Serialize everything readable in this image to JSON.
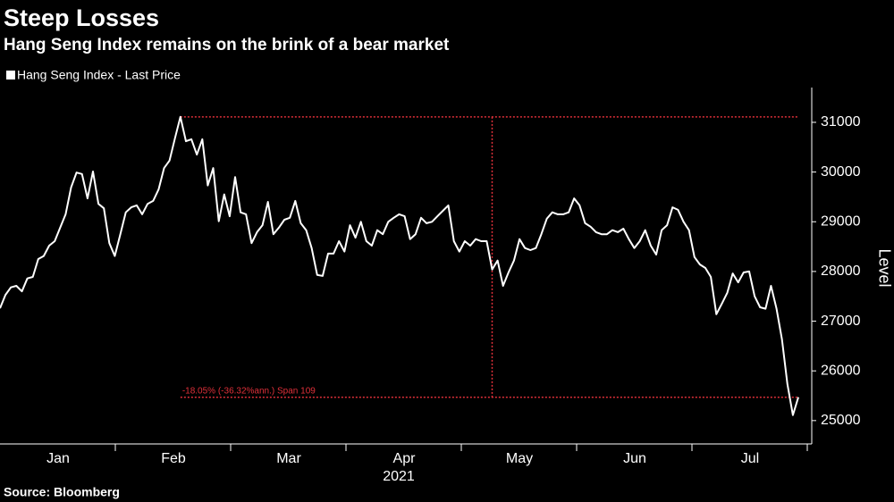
{
  "chart_data": {
    "type": "line",
    "title": "Steep Losses",
    "subtitle": "Hang Seng Index remains on the brink of a bear market",
    "source": "Source: Bloomberg",
    "y_label": "Level",
    "x_year": "2021",
    "month_labels": [
      "Jan",
      "Feb",
      "Mar",
      "Apr",
      "May",
      "Jun",
      "Jul"
    ],
    "annotation": "-18.05% (-36.32%ann.) Span 109",
    "annotation_color": "#e0303a",
    "ylim": [
      24530,
      31700
    ],
    "yticks": [
      25000,
      26000,
      27000,
      28000,
      29000,
      30000,
      31000
    ],
    "grid": false,
    "series": [
      {
        "name": "Hang Seng Index - Last Price",
        "color": "#ffffff",
        "values": [
          27260,
          27530,
          27680,
          27710,
          27600,
          27860,
          27890,
          28250,
          28310,
          28520,
          28610,
          28880,
          29150,
          29690,
          29990,
          29960,
          29470,
          30010,
          29360,
          29270,
          28570,
          28310,
          28750,
          29190,
          29290,
          29330,
          29150,
          29360,
          29420,
          29650,
          30080,
          30230,
          30680,
          31110,
          30620,
          30660,
          30350,
          30660,
          29730,
          30080,
          29010,
          29550,
          29110,
          29900,
          29190,
          29150,
          28570,
          28790,
          28930,
          29400,
          28750,
          28880,
          29040,
          29080,
          29420,
          28970,
          28830,
          28470,
          27930,
          27910,
          28360,
          28360,
          28610,
          28400,
          28930,
          28680,
          29000,
          28610,
          28520,
          28830,
          28750,
          29000,
          29080,
          29150,
          29110,
          28650,
          28750,
          29080,
          28970,
          29000,
          29110,
          29220,
          29330,
          28610,
          28400,
          28610,
          28520,
          28650,
          28610,
          28610,
          28040,
          28220,
          27710,
          27980,
          28220,
          28650,
          28470,
          28430,
          28470,
          28750,
          29060,
          29190,
          29150,
          29150,
          29190,
          29470,
          29330,
          28970,
          28900,
          28790,
          28750,
          28750,
          28830,
          28790,
          28860,
          28650,
          28470,
          28610,
          28830,
          28520,
          28340,
          28830,
          28930,
          29290,
          29240,
          29000,
          28830,
          28290,
          28140,
          28070,
          27890,
          27140,
          27350,
          27570,
          27960,
          27780,
          27980,
          28000,
          27500,
          27280,
          27250,
          27710,
          27260,
          26630,
          25730,
          25110,
          25470
        ]
      }
    ]
  }
}
